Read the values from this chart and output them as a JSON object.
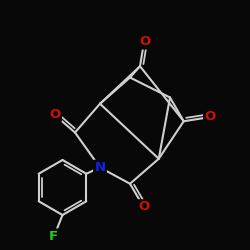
{
  "bg": "#080808",
  "bc": "#d0d0d0",
  "Oc": "#cc1100",
  "Nc": "#1122ee",
  "Fc": "#22cc22",
  "lw": 1.5,
  "fs": 9.5,
  "xlim": [
    -4.5,
    5.5
  ],
  "ylim": [
    -4.5,
    5.5
  ]
}
